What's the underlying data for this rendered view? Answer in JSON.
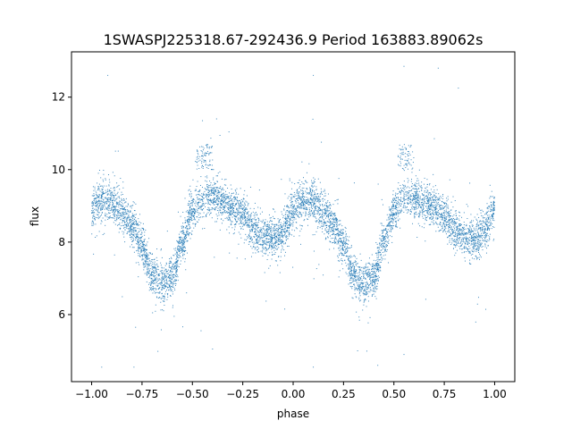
{
  "chart_data": {
    "type": "scatter",
    "title": "1SWASPJ225318.67-292436.9 Period 163883.89062s",
    "xlabel": "phase",
    "ylabel": "flux",
    "xlim": [
      -1.1,
      1.1
    ],
    "ylim": [
      4.15,
      13.25
    ],
    "xticks": [
      -1.0,
      -0.75,
      -0.5,
      -0.25,
      0.0,
      0.25,
      0.5,
      0.75,
      1.0
    ],
    "xtick_labels": [
      "−1.00",
      "−0.75",
      "−0.50",
      "−0.25",
      "0.00",
      "0.25",
      "0.50",
      "0.75",
      "1.00"
    ],
    "yticks": [
      6,
      8,
      10,
      12
    ],
    "ytick_labels": [
      "6",
      "8",
      "10",
      "12"
    ],
    "grid": false,
    "legend": "none",
    "marker_color": "#1f77b4",
    "phase_range": [
      -1.0,
      1.0
    ],
    "light_curve_profile": {
      "phase": [
        0.0,
        0.05,
        0.1,
        0.15,
        0.2,
        0.25,
        0.3,
        0.35,
        0.4,
        0.45,
        0.5,
        0.55,
        0.6,
        0.65,
        0.7,
        0.75,
        0.8,
        0.85,
        0.9,
        0.95,
        1.0
      ],
      "flux": [
        8.9,
        9.15,
        9.1,
        8.8,
        8.5,
        7.95,
        7.1,
        6.85,
        7.05,
        8.0,
        8.85,
        9.2,
        9.25,
        9.1,
        8.95,
        8.75,
        8.35,
        8.15,
        8.1,
        8.3,
        8.9
      ]
    },
    "scatter_width": 0.28,
    "points_per_unit_phase": 3400,
    "notable_points": [
      {
        "x": -0.92,
        "y": 12.6
      },
      {
        "x": -0.45,
        "y": 11.35
      },
      {
        "x": -0.38,
        "y": 11.4
      },
      {
        "x": 0.1,
        "y": 12.6
      },
      {
        "x": 0.55,
        "y": 12.85
      },
      {
        "x": 0.72,
        "y": 12.8
      },
      {
        "x": 0.82,
        "y": 12.25
      },
      {
        "x": -0.79,
        "y": 4.55
      },
      {
        "x": -0.95,
        "y": 4.55
      },
      {
        "x": -0.4,
        "y": 5.05
      },
      {
        "x": 0.1,
        "y": 4.55
      },
      {
        "x": 0.32,
        "y": 5.0
      },
      {
        "x": 0.55,
        "y": 4.9
      },
      {
        "x": 0.42,
        "y": 4.6
      }
    ]
  }
}
